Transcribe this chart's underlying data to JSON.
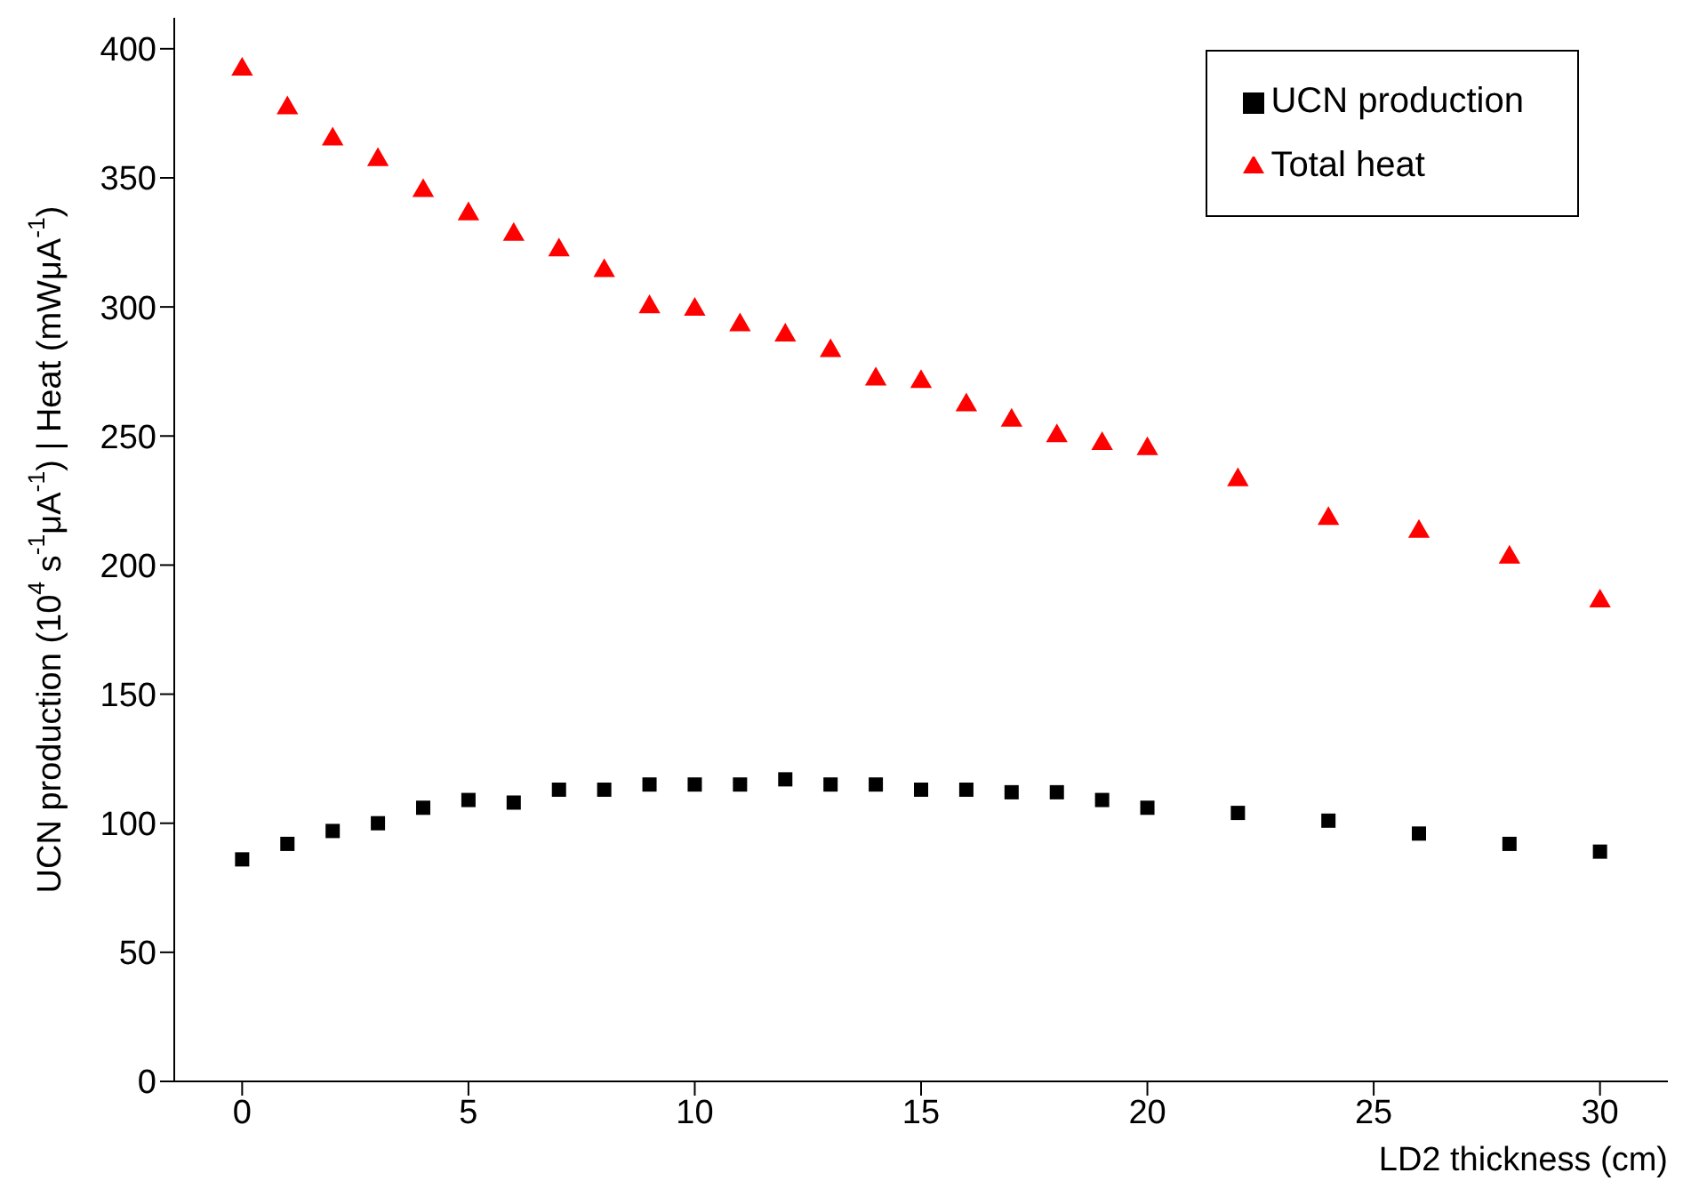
{
  "chart_data": {
    "type": "scatter",
    "xlabel": "LD2 thickness (cm)",
    "ylabel": "UCN production (10$^{4}$ s$^{-1}$μA$^{-1}$) | Heat (mWμA$^{-1}$)",
    "x": [
      0,
      1,
      2,
      3,
      4,
      5,
      6,
      7,
      8,
      9,
      10,
      11,
      12,
      13,
      14,
      15,
      16,
      17,
      18,
      19,
      20,
      22,
      24,
      26,
      28,
      30
    ],
    "series": [
      {
        "name": "UCN production",
        "color": "#000000",
        "marker": "square",
        "values": [
          86,
          92,
          97,
          100,
          106,
          109,
          108,
          113,
          113,
          115,
          115,
          115,
          117,
          115,
          115,
          113,
          113,
          112,
          112,
          109,
          106,
          104,
          101,
          96,
          92,
          89
        ]
      },
      {
        "name": "Total heat",
        "color": "#ff0000",
        "marker": "triangle",
        "values": [
          392,
          377,
          365,
          357,
          345,
          336,
          328,
          322,
          314,
          300,
          299,
          293,
          289,
          283,
          272,
          271,
          262,
          256,
          250,
          247,
          245,
          233,
          218,
          213,
          203,
          186
        ]
      }
    ],
    "xlim": [
      -1.5,
      31.5
    ],
    "xticks": [
      0,
      5,
      10,
      15,
      20,
      25,
      30
    ],
    "ylim": [
      0,
      412
    ],
    "yticks": [
      0,
      50,
      100,
      150,
      200,
      250,
      300,
      350,
      400
    ],
    "grid": false,
    "legend": "top right"
  }
}
